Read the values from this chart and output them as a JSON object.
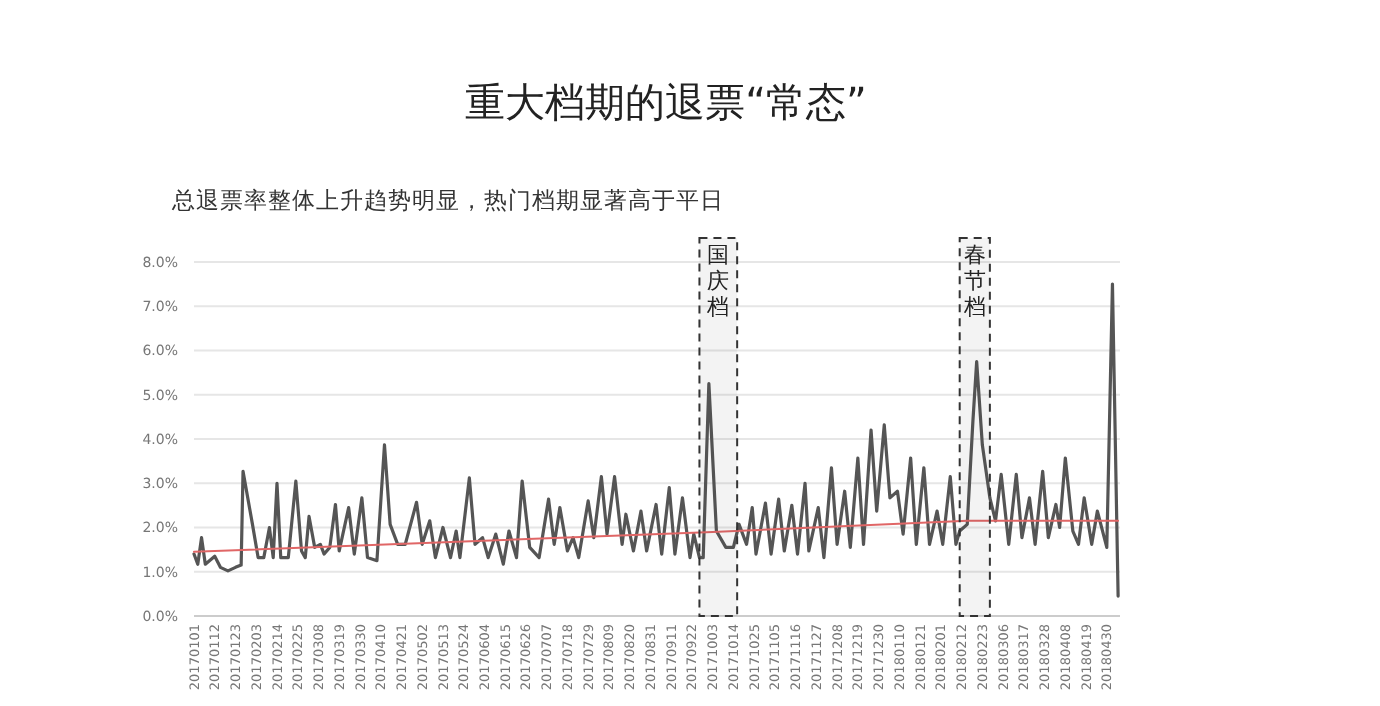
{
  "chart_data": {
    "type": "line",
    "title": "重大档期的退票“常态”",
    "subtitle": "总退票率整体上升趋势明显，热门档期显著高于平日",
    "x": [
      "2017-01-01",
      "2017-01-03",
      "2017-01-05",
      "2017-01-07",
      "2017-01-12",
      "2017-01-15",
      "2017-01-19",
      "2017-01-23",
      "2017-01-26",
      "2017-01-27",
      "2017-02-01",
      "2017-02-04",
      "2017-02-07",
      "2017-02-10",
      "2017-02-12",
      "2017-02-14",
      "2017-02-16",
      "2017-02-20",
      "2017-02-24",
      "2017-02-27",
      "2017-03-01",
      "2017-03-03",
      "2017-03-06",
      "2017-03-09",
      "2017-03-11",
      "2017-03-14",
      "2017-03-17",
      "2017-03-19",
      "2017-03-24",
      "2017-03-27",
      "2017-03-31",
      "2017-04-03",
      "2017-04-08",
      "2017-04-12",
      "2017-04-15",
      "2017-04-19",
      "2017-04-23",
      "2017-04-29",
      "2017-05-02",
      "2017-05-06",
      "2017-05-09",
      "2017-05-13",
      "2017-05-17",
      "2017-05-20",
      "2017-05-22",
      "2017-05-27",
      "2017-05-30",
      "2017-06-03",
      "2017-06-06",
      "2017-06-10",
      "2017-06-14",
      "2017-06-17",
      "2017-06-21",
      "2017-06-24",
      "2017-06-28",
      "2017-07-03",
      "2017-07-08",
      "2017-07-11",
      "2017-07-14",
      "2017-07-18",
      "2017-07-21",
      "2017-07-24",
      "2017-07-29",
      "2017-08-01",
      "2017-08-05",
      "2017-08-08",
      "2017-08-12",
      "2017-08-16",
      "2017-08-18",
      "2017-08-22",
      "2017-08-26",
      "2017-08-29",
      "2017-09-03",
      "2017-09-06",
      "2017-09-10",
      "2017-09-13",
      "2017-09-17",
      "2017-09-21",
      "2017-09-23",
      "2017-09-26",
      "2017-09-28",
      "2017-10-01",
      "2017-10-05",
      "2017-10-10",
      "2017-10-14",
      "2017-10-17",
      "2017-10-21",
      "2017-10-24",
      "2017-10-26",
      "2017-10-31",
      "2017-11-03",
      "2017-11-07",
      "2017-11-10",
      "2017-11-14",
      "2017-11-17",
      "2017-11-21",
      "2017-11-23",
      "2017-11-28",
      "2017-12-01",
      "2017-12-05",
      "2017-12-08",
      "2017-12-12",
      "2017-12-15",
      "2017-12-19",
      "2017-12-22",
      "2017-12-26",
      "2017-12-29",
      "2018-01-02",
      "2018-01-05",
      "2018-01-09",
      "2018-01-12",
      "2018-01-16",
      "2018-01-19",
      "2018-01-23",
      "2018-01-26",
      "2018-01-30",
      "2018-02-02",
      "2018-02-06",
      "2018-02-09",
      "2018-02-11",
      "2018-02-15",
      "2018-02-18",
      "2018-02-20",
      "2018-02-23",
      "2018-02-27",
      "2018-03-02",
      "2018-03-05",
      "2018-03-09",
      "2018-03-13",
      "2018-03-16",
      "2018-03-20",
      "2018-03-23",
      "2018-03-27",
      "2018-03-30",
      "2018-04-03",
      "2018-04-05",
      "2018-04-08",
      "2018-04-12",
      "2018-04-15",
      "2018-04-18",
      "2018-04-22",
      "2018-04-25",
      "2018-04-30",
      "2018-05-03",
      "2018-05-06"
    ],
    "series": [
      {
        "color": "#555555",
        "values": [
          1.4,
          1.17,
          1.77,
          1.17,
          1.35,
          1.1,
          1.02,
          1.1,
          1.15,
          3.27,
          2.07,
          1.32,
          1.32,
          2.0,
          1.32,
          3.0,
          1.32,
          1.32,
          3.05,
          1.47,
          1.32,
          2.25,
          1.55,
          1.62,
          1.4,
          1.55,
          2.52,
          1.47,
          2.45,
          1.4,
          2.67,
          1.32,
          1.25,
          3.87,
          2.07,
          1.62,
          1.62,
          2.57,
          1.62,
          2.15,
          1.32,
          2.0,
          1.32,
          1.92,
          1.32,
          3.12,
          1.62,
          1.77,
          1.32,
          1.85,
          1.17,
          1.92,
          1.32,
          3.05,
          1.55,
          1.32,
          2.64,
          1.62,
          2.45,
          1.47,
          1.77,
          1.32,
          2.6,
          1.77,
          3.15,
          1.85,
          3.15,
          1.62,
          2.3,
          1.47,
          2.37,
          1.47,
          2.52,
          1.4,
          2.9,
          1.4,
          2.67,
          1.32,
          1.85,
          1.32,
          1.32,
          5.25,
          1.92,
          1.55,
          1.55,
          2.07,
          1.62,
          2.45,
          1.4,
          2.55,
          1.4,
          2.64,
          1.47,
          2.5,
          1.4,
          3.0,
          1.47,
          2.45,
          1.32,
          3.35,
          1.62,
          2.82,
          1.55,
          3.57,
          1.62,
          4.2,
          2.37,
          4.32,
          2.67,
          2.82,
          1.85,
          3.57,
          1.62,
          3.35,
          1.62,
          2.37,
          1.62,
          3.15,
          1.62,
          1.92,
          2.07,
          4.4,
          5.75,
          3.87,
          2.67,
          2.15,
          3.2,
          1.62,
          3.2,
          1.77,
          2.67,
          1.62,
          3.27,
          1.77,
          2.52,
          2.0,
          3.57,
          1.92,
          1.62,
          2.67,
          1.62,
          2.37,
          1.55,
          7.5,
          0.45
        ]
      },
      {
        "type": "line",
        "color": "#e06666",
        "x": [
          "2017-01-01",
          "2017-10-03",
          "2018-02-15",
          "2018-05-06"
        ],
        "values": [
          1.45,
          1.9,
          2.15,
          2.15
        ]
      }
    ],
    "xlim": [
      "2017-01-01",
      "2018-05-07"
    ],
    "xticks": [
      {
        "value": "2017-01-01",
        "label": "20170101"
      },
      {
        "value": "2017-01-12",
        "label": "20170112"
      },
      {
        "value": "2017-01-23",
        "label": "20170123"
      },
      {
        "value": "2017-02-03",
        "label": "20170203"
      },
      {
        "value": "2017-02-14",
        "label": "20170214"
      },
      {
        "value": "2017-02-25",
        "label": "20170225"
      },
      {
        "value": "2017-03-08",
        "label": "20170308"
      },
      {
        "value": "2017-03-19",
        "label": "20170319"
      },
      {
        "value": "2017-03-30",
        "label": "20170330"
      },
      {
        "value": "2017-04-10",
        "label": "20170410"
      },
      {
        "value": "2017-04-21",
        "label": "20170421"
      },
      {
        "value": "2017-05-02",
        "label": "20170502"
      },
      {
        "value": "2017-05-13",
        "label": "20170513"
      },
      {
        "value": "2017-05-24",
        "label": "20170524"
      },
      {
        "value": "2017-06-04",
        "label": "20170604"
      },
      {
        "value": "2017-06-15",
        "label": "20170615"
      },
      {
        "value": "2017-06-26",
        "label": "20170626"
      },
      {
        "value": "2017-07-07",
        "label": "20170707"
      },
      {
        "value": "2017-07-18",
        "label": "20170718"
      },
      {
        "value": "2017-07-29",
        "label": "20170729"
      },
      {
        "value": "2017-08-09",
        "label": "20170809"
      },
      {
        "value": "2017-08-20",
        "label": "20170820"
      },
      {
        "value": "2017-08-31",
        "label": "20170831"
      },
      {
        "value": "2017-09-11",
        "label": "20170911"
      },
      {
        "value": "2017-09-22",
        "label": "20170922"
      },
      {
        "value": "2017-10-03",
        "label": "20171003"
      },
      {
        "value": "2017-10-14",
        "label": "20171014"
      },
      {
        "value": "2017-10-25",
        "label": "20171025"
      },
      {
        "value": "2017-11-05",
        "label": "20171105"
      },
      {
        "value": "2017-11-16",
        "label": "20171116"
      },
      {
        "value": "2017-11-27",
        "label": "20171127"
      },
      {
        "value": "2017-12-08",
        "label": "20171208"
      },
      {
        "value": "2017-12-19",
        "label": "20171219"
      },
      {
        "value": "2017-12-30",
        "label": "20171230"
      },
      {
        "value": "2018-01-10",
        "label": "20180110"
      },
      {
        "value": "2018-01-21",
        "label": "20180121"
      },
      {
        "value": "2018-02-01",
        "label": "20180201"
      },
      {
        "value": "2018-02-12",
        "label": "20180212"
      },
      {
        "value": "2018-02-23",
        "label": "20180223"
      },
      {
        "value": "2018-03-06",
        "label": "20180306"
      },
      {
        "value": "2018-03-17",
        "label": "20180317"
      },
      {
        "value": "2018-03-28",
        "label": "20180328"
      },
      {
        "value": "2018-04-08",
        "label": "20180408"
      },
      {
        "value": "2018-04-19",
        "label": "20180419"
      },
      {
        "value": "2018-04-30",
        "label": "20180430"
      }
    ],
    "ylim": [
      0,
      8
    ],
    "yticks": [
      {
        "value": 0,
        "label": "0.0%"
      },
      {
        "value": 1,
        "label": "1.0%"
      },
      {
        "value": 2,
        "label": "2.0%"
      },
      {
        "value": 3,
        "label": "3.0%"
      },
      {
        "value": 4,
        "label": "4.0%"
      },
      {
        "value": 5,
        "label": "5.0%"
      },
      {
        "value": 6,
        "label": "6.0%"
      },
      {
        "value": 7,
        "label": "7.0%"
      },
      {
        "value": 8,
        "label": "8.0%"
      }
    ],
    "bands": [
      {
        "axis": "x",
        "from": "2017-09-26",
        "to": "2017-10-16",
        "label": "国庆档",
        "color": "#333333"
      },
      {
        "axis": "x",
        "from": "2018-02-11",
        "to": "2018-02-27",
        "label": "春节档",
        "color": "#333333"
      }
    ],
    "grid": "y",
    "marker": "none",
    "line_style": "solid"
  }
}
